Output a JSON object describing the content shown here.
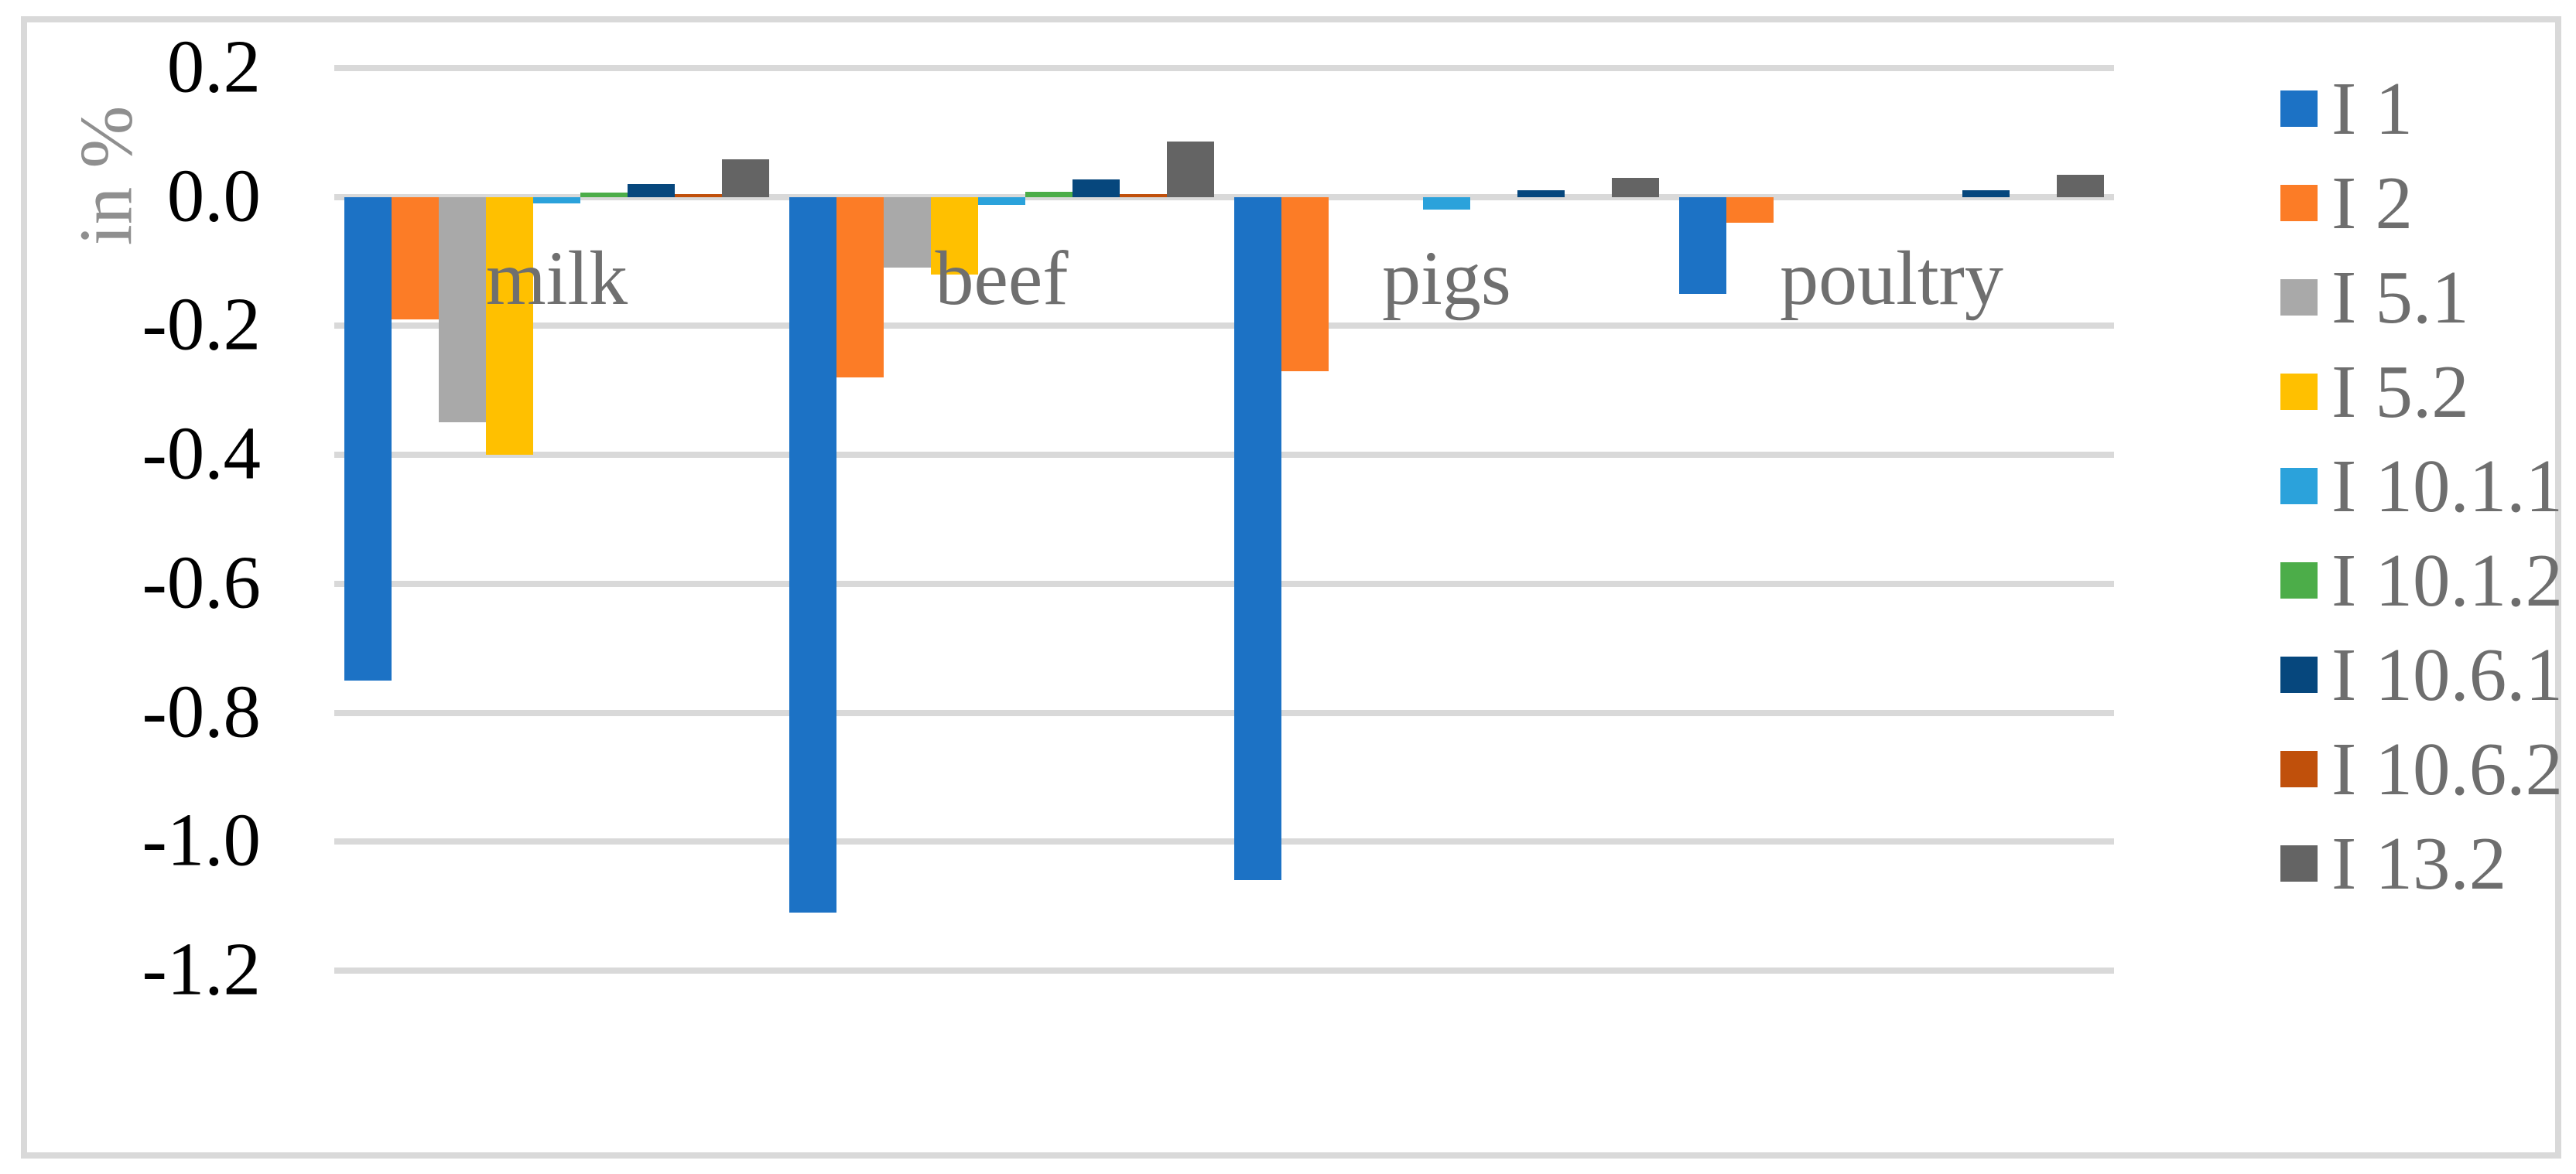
{
  "chart_data": {
    "type": "bar",
    "title": "",
    "xlabel": "",
    "ylabel": "in %",
    "categories": [
      "milk",
      "beef",
      "pigs",
      "poultry"
    ],
    "series": [
      {
        "name": "I 1",
        "color": "#1C72C5",
        "values": [
          -0.75,
          -1.11,
          -1.06,
          -0.15
        ]
      },
      {
        "name": "I 2",
        "color": "#FC7C26",
        "values": [
          -0.19,
          -0.28,
          -0.27,
          -0.04
        ]
      },
      {
        "name": "I 5.1",
        "color": "#A9A9A9",
        "values": [
          -0.35,
          -0.11,
          0,
          0
        ]
      },
      {
        "name": "I 5.2",
        "color": "#FFC000",
        "values": [
          -0.4,
          -0.12,
          0,
          0
        ]
      },
      {
        "name": "I 10.1.1",
        "color": "#2BA2DB",
        "values": [
          -0.01,
          -0.012,
          -0.02,
          0
        ]
      },
      {
        "name": "I 10.1.2",
        "color": "#4CAD49",
        "values": [
          0.007,
          0.008,
          0,
          0
        ]
      },
      {
        "name": "I 10.6.1",
        "color": "#06477D",
        "values": [
          0.02,
          0.027,
          0.01,
          0.011
        ]
      },
      {
        "name": "I 10.6.2",
        "color": "#C0500B",
        "values": [
          0.005,
          0.005,
          0,
          0
        ]
      },
      {
        "name": "I 13.2",
        "color": "#646464",
        "values": [
          0.059,
          0.086,
          0.03,
          0.035
        ]
      }
    ],
    "y_ticks": [
      "0.2",
      "0.0",
      "-0.2",
      "-0.4",
      "-0.6",
      "-0.8",
      "-1.0",
      "-1.2"
    ],
    "ylim": [
      -1.2,
      0.2
    ],
    "grid": true,
    "legend_position": "right",
    "colors": {
      "gridline": "#D9D9D9",
      "frame_border": "#D9D9D9",
      "tick_text": "#000000",
      "category_text": "#6F6F6F",
      "legend_text": "#6E6E6E",
      "axis_title_text": "#8F8F8F",
      "background": "#FFFFFF"
    }
  }
}
